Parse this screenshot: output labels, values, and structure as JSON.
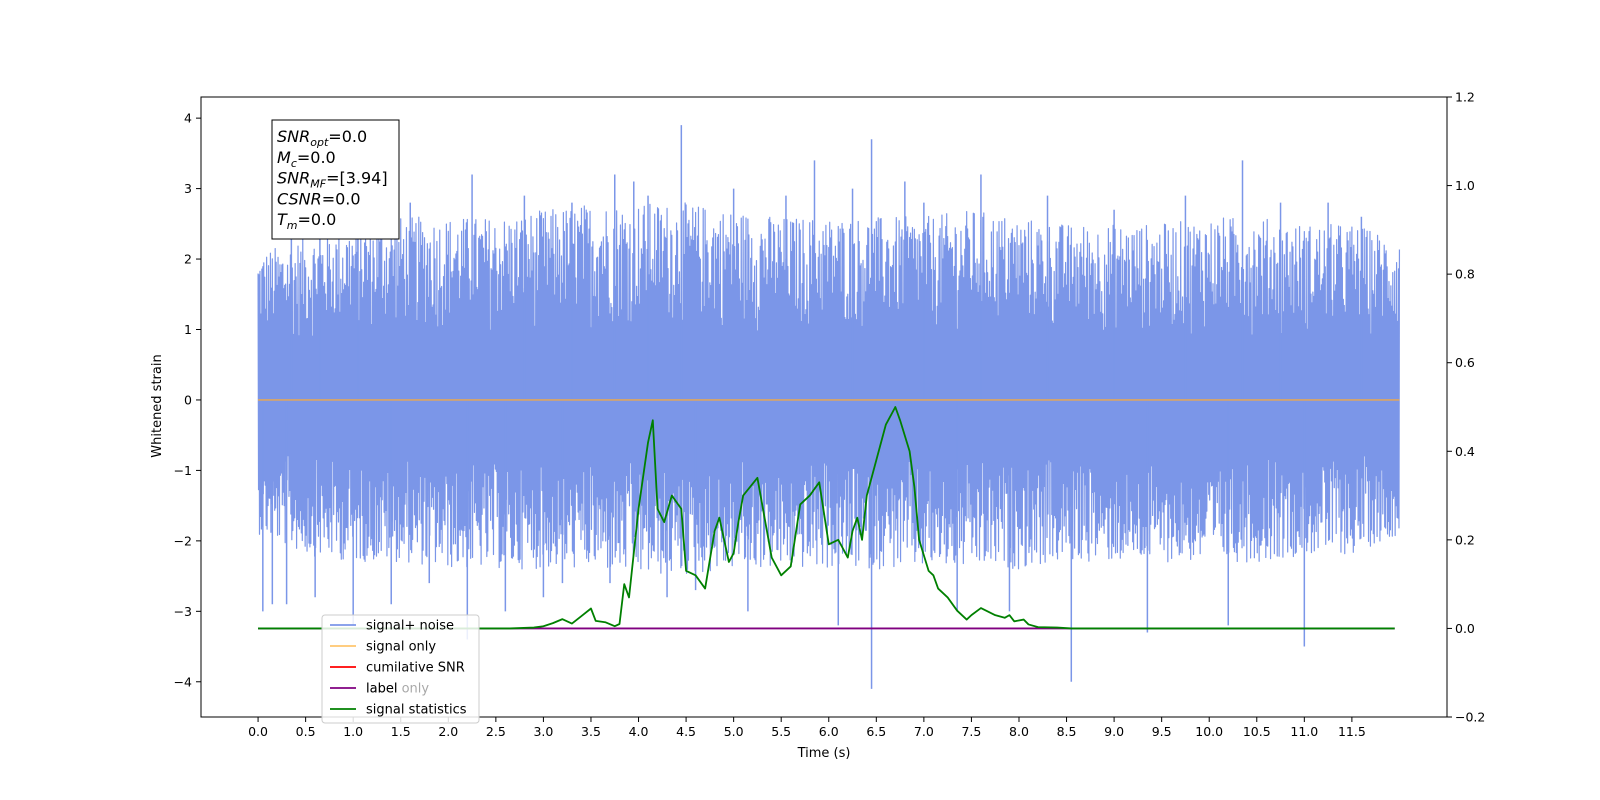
{
  "chart_data": {
    "type": "line",
    "xlabel": "Time (s)",
    "ylabel_left": "Whitened strain",
    "ylabel_right": "",
    "xlim": [
      -0.6,
      12.5
    ],
    "ylim_left": [
      -4.5,
      4.3
    ],
    "ylim_right": [
      -0.2,
      1.2
    ],
    "x_ticks": [
      "0.0",
      "0.5",
      "1.0",
      "1.5",
      "2.0",
      "2.5",
      "3.0",
      "3.5",
      "4.0",
      "4.5",
      "5.0",
      "5.5",
      "6.0",
      "6.5",
      "7.0",
      "7.5",
      "8.0",
      "8.5",
      "9.0",
      "9.5",
      "10.0",
      "10.5",
      "11.0",
      "11.5"
    ],
    "y_ticks_left": [
      4,
      3,
      2,
      1,
      0,
      -1,
      -2,
      -3,
      -4
    ],
    "y_ticks_right": [
      "1.2",
      "1.0",
      "0.8",
      "0.6",
      "0.4",
      "0.2",
      "0.0",
      "−0.2"
    ],
    "grid": false,
    "legend_placement": "lower-left",
    "legend": [
      {
        "label": "signal+ noise",
        "color": "#7b96e8"
      },
      {
        "label": "signal only",
        "color": "#ffc66e"
      },
      {
        "label": "cumilative SNR",
        "color": "#ff0000"
      },
      {
        "label": "label",
        "color": "#800080"
      },
      {
        "label": "label only",
        "color": "#008000"
      },
      {
        "label": "signal statistics",
        "color": "#008000"
      }
    ],
    "info_box": {
      "lines": [
        {
          "sym": "SNR",
          "sub": "opt",
          "val": "=0.0"
        },
        {
          "sym": "M",
          "sub": "c",
          "val": "=0.0"
        },
        {
          "sym": "SNR",
          "sub": "MF",
          "val": "=[3.94]"
        },
        {
          "sym": "CSNR",
          "sub": "",
          "val": "=0.0"
        },
        {
          "sym": "T",
          "sub": "m",
          "val": "=0.0"
        }
      ]
    },
    "series": [
      {
        "name": "signal+ noise",
        "axis": "left",
        "color": "#7b96e8",
        "style": "dense noise",
        "x_range": [
          0.0,
          12.0
        ],
        "upper_envelope": [
          [
            0.0,
            2.1
          ],
          [
            0.5,
            2.3
          ],
          [
            1.0,
            2.5
          ],
          [
            1.5,
            2.6
          ],
          [
            2.0,
            2.6
          ],
          [
            2.5,
            2.6
          ],
          [
            3.0,
            2.7
          ],
          [
            3.5,
            2.8
          ],
          [
            4.0,
            2.8
          ],
          [
            4.5,
            2.8
          ],
          [
            5.0,
            2.7
          ],
          [
            5.5,
            2.6
          ],
          [
            6.0,
            2.6
          ],
          [
            6.5,
            2.6
          ],
          [
            7.0,
            2.6
          ],
          [
            7.5,
            2.7
          ],
          [
            8.0,
            2.6
          ],
          [
            8.5,
            2.5
          ],
          [
            9.0,
            2.5
          ],
          [
            9.5,
            2.5
          ],
          [
            10.0,
            2.6
          ],
          [
            10.5,
            2.6
          ],
          [
            11.0,
            2.5
          ],
          [
            11.5,
            2.5
          ],
          [
            12.0,
            2.3
          ]
        ],
        "lower_envelope": [
          [
            0.0,
            -1.9
          ],
          [
            0.5,
            -2.2
          ],
          [
            1.0,
            -2.3
          ],
          [
            1.5,
            -2.3
          ],
          [
            2.0,
            -2.4
          ],
          [
            2.5,
            -2.4
          ],
          [
            3.0,
            -2.4
          ],
          [
            3.5,
            -2.4
          ],
          [
            4.0,
            -2.5
          ],
          [
            4.5,
            -2.5
          ],
          [
            5.0,
            -2.4
          ],
          [
            5.5,
            -2.4
          ],
          [
            6.0,
            -2.4
          ],
          [
            6.5,
            -2.4
          ],
          [
            7.0,
            -2.4
          ],
          [
            7.5,
            -2.4
          ],
          [
            8.0,
            -2.4
          ],
          [
            8.5,
            -2.3
          ],
          [
            9.0,
            -2.3
          ],
          [
            9.5,
            -2.3
          ],
          [
            10.0,
            -2.3
          ],
          [
            10.5,
            -2.3
          ],
          [
            11.0,
            -2.2
          ],
          [
            11.5,
            -2.2
          ],
          [
            12.0,
            -1.9
          ]
        ],
        "spikes": [
          [
            0.05,
            -3.0
          ],
          [
            0.15,
            -2.9
          ],
          [
            0.3,
            -2.9
          ],
          [
            0.35,
            2.8
          ],
          [
            0.6,
            -2.8
          ],
          [
            0.65,
            2.7
          ],
          [
            1.0,
            -3.2
          ],
          [
            1.05,
            2.8
          ],
          [
            1.4,
            -2.9
          ],
          [
            1.6,
            2.8
          ],
          [
            1.8,
            -2.6
          ],
          [
            2.2,
            -3.4
          ],
          [
            2.25,
            3.2
          ],
          [
            2.6,
            -3.0
          ],
          [
            2.8,
            2.9
          ],
          [
            3.0,
            -2.8
          ],
          [
            3.2,
            -2.6
          ],
          [
            3.3,
            2.8
          ],
          [
            3.7,
            -2.6
          ],
          [
            3.75,
            3.2
          ],
          [
            3.95,
            3.1
          ],
          [
            4.1,
            2.9
          ],
          [
            4.3,
            -2.8
          ],
          [
            4.45,
            3.9
          ],
          [
            4.6,
            -2.7
          ],
          [
            5.0,
            3.0
          ],
          [
            5.15,
            -3.0
          ],
          [
            5.55,
            2.9
          ],
          [
            5.85,
            3.4
          ],
          [
            6.1,
            -3.2
          ],
          [
            6.25,
            3.0
          ],
          [
            6.45,
            3.7
          ],
          [
            6.45,
            -4.1
          ],
          [
            6.8,
            3.1
          ],
          [
            7.0,
            2.8
          ],
          [
            7.35,
            -3.0
          ],
          [
            7.6,
            3.2
          ],
          [
            7.9,
            -3.0
          ],
          [
            8.3,
            2.9
          ],
          [
            8.55,
            -4.0
          ],
          [
            9.0,
            2.7
          ],
          [
            9.35,
            -3.3
          ],
          [
            9.75,
            2.9
          ],
          [
            10.2,
            -3.2
          ],
          [
            10.35,
            3.4
          ],
          [
            10.75,
            2.8
          ],
          [
            11.0,
            -3.5
          ],
          [
            11.25,
            2.8
          ],
          [
            11.6,
            2.6
          ]
        ]
      },
      {
        "name": "signal only",
        "axis": "left",
        "color": "#f0a848",
        "x": [
          0.0,
          12.0
        ],
        "y": [
          0.0,
          0.0
        ]
      },
      {
        "name": "label",
        "axis": "right",
        "color": "#800080",
        "x": [
          0.0,
          11.95
        ],
        "y": [
          0.0,
          0.0
        ]
      },
      {
        "name": "signal statistics",
        "axis": "right",
        "color": "#008000",
        "x": [
          0.0,
          0.5,
          1.0,
          1.5,
          2.0,
          2.5,
          2.65,
          2.9,
          3.0,
          3.1,
          3.2,
          3.3,
          3.4,
          3.5,
          3.55,
          3.65,
          3.75,
          3.8,
          3.85,
          3.9,
          4.0,
          4.1,
          4.15,
          4.2,
          4.27,
          4.35,
          4.45,
          4.5,
          4.6,
          4.7,
          4.8,
          4.85,
          4.95,
          5.0,
          5.05,
          5.1,
          5.25,
          5.35,
          5.4,
          5.5,
          5.6,
          5.7,
          5.8,
          5.9,
          5.95,
          6.0,
          6.1,
          6.2,
          6.25,
          6.3,
          6.35,
          6.4,
          6.5,
          6.6,
          6.7,
          6.75,
          6.85,
          6.9,
          6.95,
          7.05,
          7.1,
          7.15,
          7.25,
          7.35,
          7.45,
          7.5,
          7.6,
          7.75,
          7.85,
          7.9,
          7.95,
          8.05,
          8.1,
          8.2,
          8.4,
          8.55,
          9.0,
          9.5,
          10.0,
          10.5,
          11.0,
          11.5,
          11.95
        ],
        "y": [
          0.0,
          0.0,
          0.0,
          0.0,
          0.0,
          0.0,
          0.0,
          0.002,
          0.005,
          0.012,
          0.021,
          0.011,
          0.028,
          0.045,
          0.017,
          0.014,
          0.005,
          0.01,
          0.1,
          0.07,
          0.27,
          0.42,
          0.47,
          0.27,
          0.24,
          0.3,
          0.27,
          0.13,
          0.12,
          0.09,
          0.22,
          0.25,
          0.15,
          0.17,
          0.24,
          0.3,
          0.34,
          0.22,
          0.16,
          0.12,
          0.14,
          0.28,
          0.3,
          0.33,
          0.26,
          0.19,
          0.2,
          0.16,
          0.22,
          0.25,
          0.2,
          0.3,
          0.38,
          0.46,
          0.5,
          0.47,
          0.4,
          0.32,
          0.2,
          0.13,
          0.12,
          0.09,
          0.07,
          0.04,
          0.02,
          0.03,
          0.046,
          0.03,
          0.024,
          0.03,
          0.016,
          0.02,
          0.009,
          0.003,
          0.002,
          0.0,
          0.0,
          0.0,
          0.0,
          0.0,
          0.0,
          0.0,
          0.0
        ]
      }
    ]
  }
}
